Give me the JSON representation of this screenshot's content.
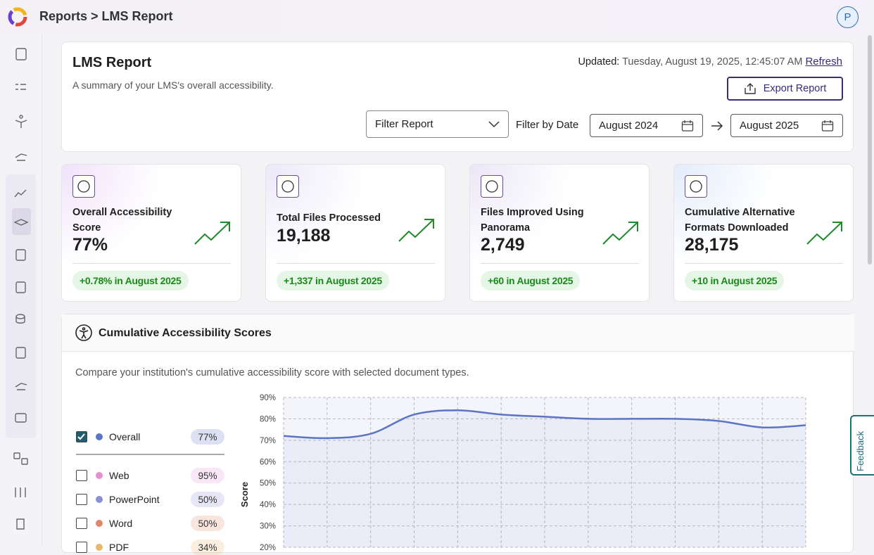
{
  "header": {
    "breadcrumb": "Reports > LMS Report",
    "avatar": "P"
  },
  "report": {
    "title": "LMS Report",
    "subtitle": "A summary of your LMS's overall accessibility.",
    "updated_label": "Updated:",
    "updated_value": "Tuesday, August 19, 2025, 12:45:07 AM",
    "refresh": "Refresh",
    "export": "Export Report",
    "filter": "Filter Report",
    "filter_by_date": "Filter by Date",
    "date_from": "August 2024",
    "date_to": "August 2025"
  },
  "stats": [
    {
      "label": "Overall Accessibility Score",
      "value": "77%",
      "change": "+0.78% in August 2025"
    },
    {
      "label": "Total Files Processed",
      "value": "19,188",
      "change": "+1,337 in August 2025"
    },
    {
      "label": "Files Improved Using Panorama",
      "value": "2,749",
      "change": "+60 in August 2025"
    },
    {
      "label": "Cumulative Alternative Formats Downloaded",
      "value": "28,175",
      "change": "+10 in August 2025"
    }
  ],
  "scores": {
    "title": "Cumulative Accessibility Scores",
    "description": "Compare your institution's cumulative accessibility score with selected document types.",
    "items": [
      {
        "name": "Overall",
        "score": "77%",
        "checked": true,
        "color": "#5b74c4"
      },
      {
        "name": "Web",
        "score": "95%",
        "checked": false,
        "color": "#e48fd6"
      },
      {
        "name": "PowerPoint",
        "score": "50%",
        "checked": false,
        "color": "#8b8fd8"
      },
      {
        "name": "Word",
        "score": "50%",
        "checked": false,
        "color": "#e0876a"
      },
      {
        "name": "PDF",
        "score": "34%",
        "checked": false,
        "color": "#e8b86a"
      }
    ],
    "chart": {
      "type": "line",
      "y_label": "Score",
      "categories": [
        null,
        null,
        null,
        null,
        null,
        null,
        null,
        null,
        null,
        null,
        null,
        null,
        null
      ],
      "values": [
        72,
        71,
        73,
        82,
        84,
        82,
        81,
        80,
        80,
        80,
        79,
        76,
        77
      ],
      "color": "#5b74c4",
      "ylim": [
        20,
        90
      ],
      "yticks": [
        {
          "value": 20,
          "label": "20%"
        },
        {
          "value": 30,
          "label": "30%"
        },
        {
          "value": 40,
          "label": "40%"
        },
        {
          "value": 50,
          "label": "50%"
        },
        {
          "value": 60,
          "label": "60%"
        },
        {
          "value": 70,
          "label": "70%"
        },
        {
          "value": 80,
          "label": "80%"
        },
        {
          "value": 90,
          "label": "90%"
        }
      ],
      "grid": true
    }
  },
  "feedback": "Feedback"
}
